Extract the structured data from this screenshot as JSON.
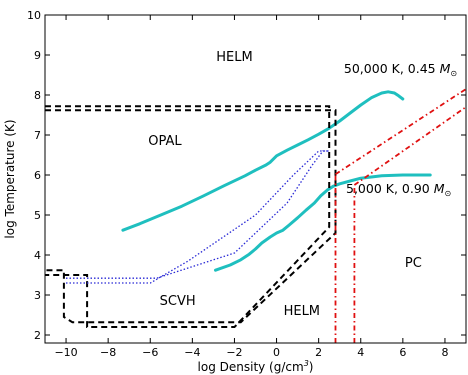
{
  "chart_data": {
    "type": "line",
    "title": "",
    "xlabel": "log Density (g/cm",
    "xlabel_unit_sup": "3",
    "xlabel_close": ")",
    "ylabel": "log Temperature (K)",
    "xlim": [
      -11,
      9
    ],
    "ylim": [
      1.8,
      10
    ],
    "x_ticks": [
      -10,
      -8,
      -6,
      -4,
      -2,
      0,
      2,
      4,
      6,
      8
    ],
    "y_ticks": [
      2,
      3,
      4,
      5,
      6,
      7,
      8,
      9,
      10
    ],
    "grid": false,
    "colors": {
      "tracks": "#1fbfbf",
      "boundaries": "#000000",
      "dotted": "#2a2ad6",
      "pc": "#e01010"
    },
    "region_labels": [
      {
        "text": "HELM",
        "x": -2,
        "y": 8.85
      },
      {
        "text": "OPAL",
        "x": -5.3,
        "y": 6.75
      },
      {
        "text": "SCVH",
        "x": -4.7,
        "y": 2.75
      },
      {
        "text": "HELM",
        "x": 1.2,
        "y": 2.5
      },
      {
        "text": "PC",
        "x": 6.5,
        "y": 3.7
      }
    ],
    "annotations": [
      {
        "prefix": "50,000 K, 0.45 ",
        "symbol": "M",
        "sub": "⊙",
        "x": 3.2,
        "y": 8.55
      },
      {
        "prefix": "5,000 K, 0.90 ",
        "symbol": "M",
        "sub": "⊙",
        "x": 3.3,
        "y": 5.55
      }
    ],
    "series": [
      {
        "style": "cyan-track",
        "x": [
          -7.3,
          -6.5,
          -5.5,
          -4.5,
          -3.5,
          -2.5,
          -1.5,
          -1.0,
          -0.5,
          -0.3,
          0.0,
          0.5,
          1.0,
          1.5,
          2.0,
          2.5,
          3.0,
          3.5,
          4.0,
          4.5,
          5.0,
          5.3,
          5.6,
          5.8,
          6.0
        ],
        "y": [
          4.62,
          4.78,
          5.0,
          5.22,
          5.47,
          5.73,
          5.98,
          6.12,
          6.25,
          6.32,
          6.48,
          6.62,
          6.75,
          6.88,
          7.02,
          7.17,
          7.35,
          7.55,
          7.75,
          7.93,
          8.05,
          8.08,
          8.05,
          7.98,
          7.9
        ]
      },
      {
        "style": "cyan-track",
        "x": [
          -2.9,
          -2.2,
          -1.7,
          -1.3,
          -1.0,
          -0.7,
          -0.3,
          0.0,
          0.3,
          0.6,
          1.0,
          1.4,
          1.8,
          2.1,
          2.4,
          2.7,
          3.0,
          3.5,
          4.0,
          5.0,
          6.0,
          7.3
        ],
        "y": [
          3.62,
          3.75,
          3.88,
          4.02,
          4.15,
          4.3,
          4.45,
          4.55,
          4.62,
          4.75,
          4.93,
          5.12,
          5.3,
          5.48,
          5.62,
          5.72,
          5.78,
          5.85,
          5.92,
          5.98,
          6.0,
          6.0
        ]
      },
      {
        "style": "black-dashed",
        "x": [
          -11,
          -9.0,
          -9.0,
          2.5,
          2.5,
          -11
        ],
        "y": [
          7.72,
          7.72,
          7.72,
          7.72,
          4.65,
          4.65
        ],
        "segments": [
          {
            "x": [
              -11,
              2.5,
              2.5,
              -2.0,
              -9.0,
              -9.0,
              -11
            ],
            "y": [
              7.72,
              7.72,
              4.7,
              2.2,
              2.2,
              3.5,
              3.5
            ]
          },
          {
            "x": [
              -11,
              2.8,
              2.8,
              -1.7,
              -9.7,
              -10.1,
              -10.1,
              -11
            ],
            "y": [
              7.62,
              7.62,
              4.55,
              2.32,
              2.32,
              2.45,
              3.62,
              3.62
            ]
          }
        ]
      },
      {
        "style": "blue-dotted",
        "segments": [
          {
            "x": [
              -10.0,
              -6.0,
              -4.2,
              -1.0,
              0.8,
              2.0,
              2.2,
              2.5
            ],
            "y": [
              3.3,
              3.3,
              3.85,
              5.0,
              6.0,
              6.6,
              6.6,
              6.6
            ]
          },
          {
            "x": [
              -10.0,
              -5.7,
              -2.0,
              0.5,
              1.7,
              2.2,
              2.5
            ],
            "y": [
              3.42,
              3.42,
              4.05,
              5.3,
              6.25,
              6.6,
              6.6
            ]
          }
        ]
      },
      {
        "style": "red-dashdot",
        "segments": [
          {
            "x": [
              2.8,
              2.8
            ],
            "y": [
              1.8,
              6.02
            ]
          },
          {
            "x": [
              3.7,
              3.7
            ],
            "y": [
              1.8,
              5.75
            ]
          },
          {
            "x": [
              2.8,
              9.0
            ],
            "y": [
              6.02,
              8.15
            ]
          },
          {
            "x": [
              3.7,
              9.0
            ],
            "y": [
              5.75,
              7.7
            ]
          }
        ]
      }
    ]
  }
}
